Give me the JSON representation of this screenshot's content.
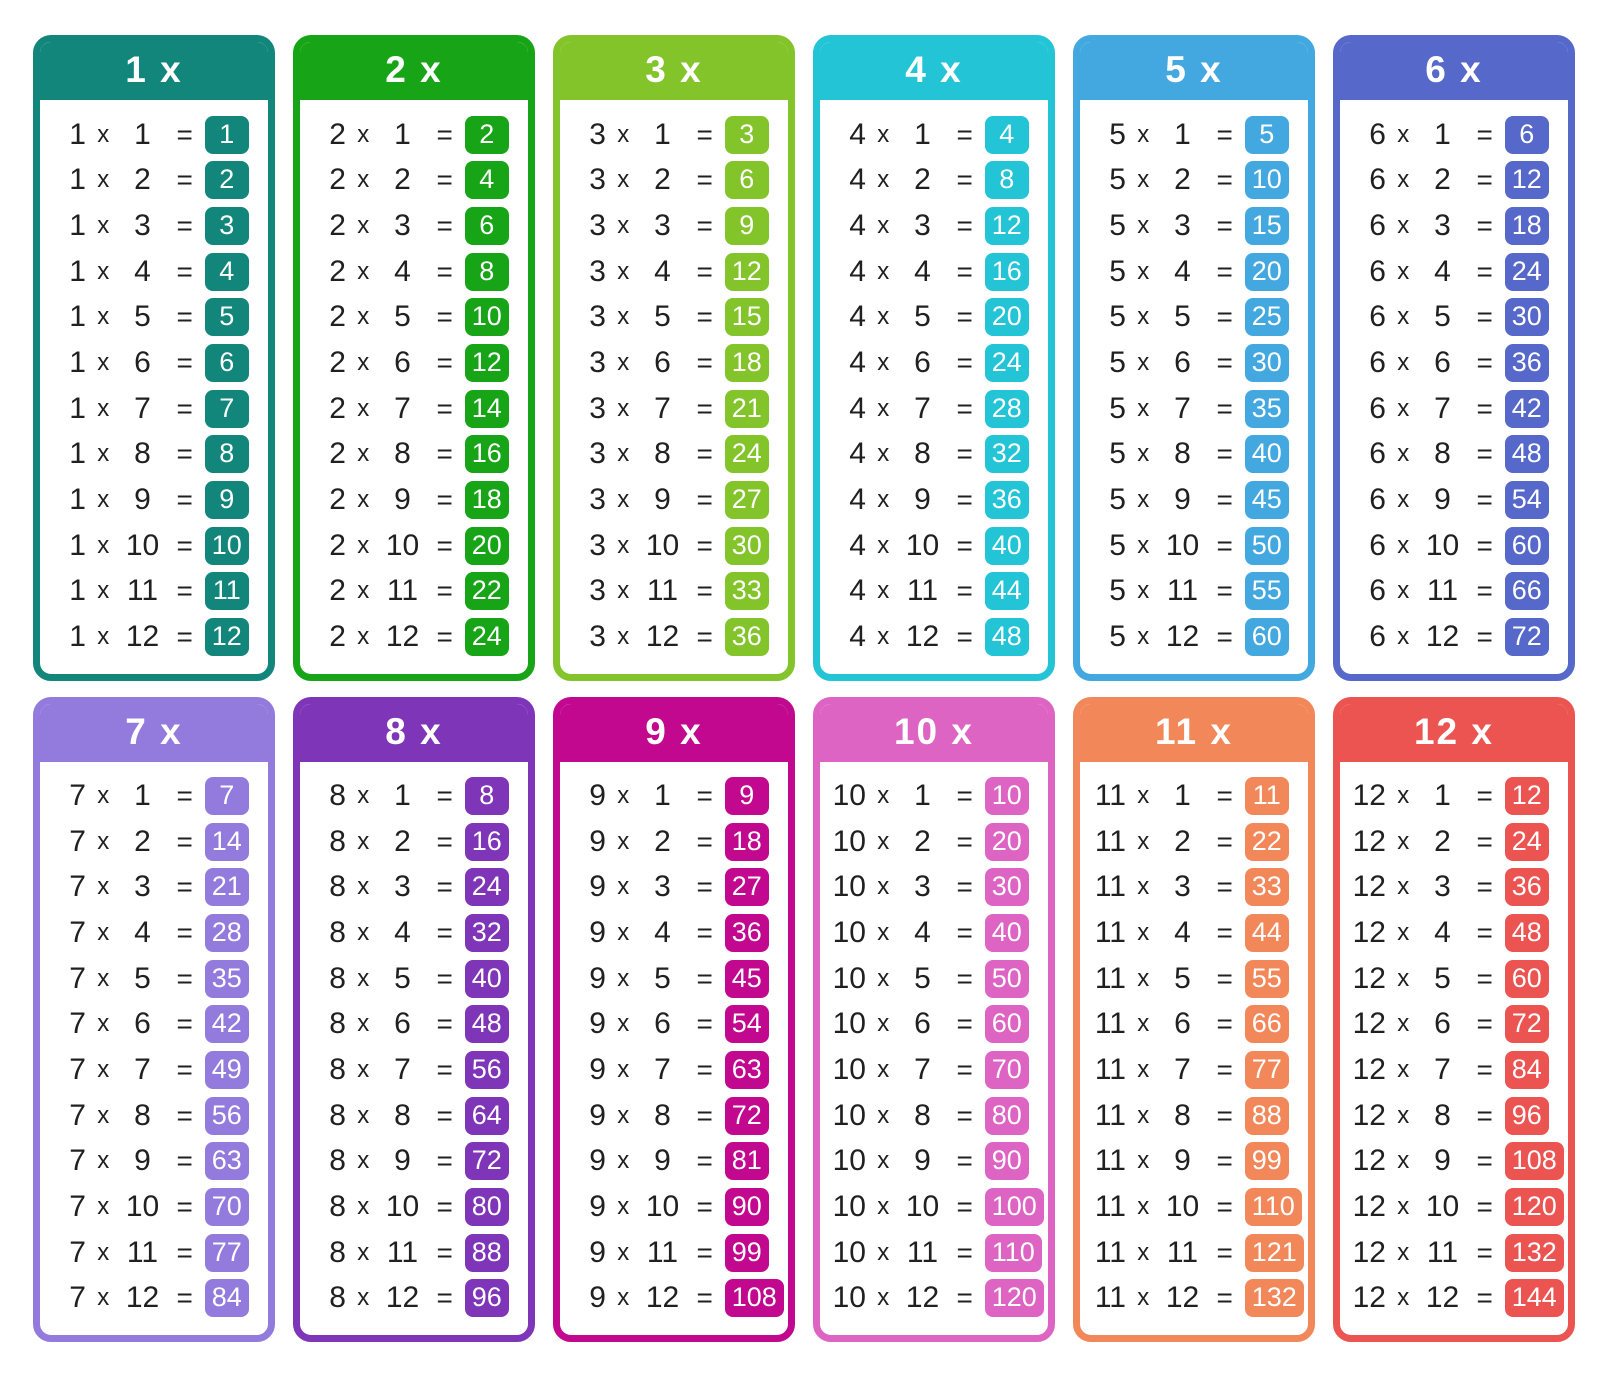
{
  "page": {
    "background": "#ffffff",
    "text_color": "#202020",
    "badge_text_color": "#ffffff"
  },
  "chart_data": {
    "type": "table",
    "description": "Multiplication tables poster, cards 1x through 12x",
    "layout": {
      "columns": 6,
      "rows": 2,
      "grid_on": false
    },
    "times_symbol": "x",
    "equals_symbol": "=",
    "factors": [
      1,
      2,
      3,
      4,
      5,
      6,
      7,
      8,
      9,
      10,
      11,
      12
    ],
    "tables": [
      {
        "label": "1 x",
        "multiplier": 1,
        "color": "#12867a",
        "products": [
          1,
          2,
          3,
          4,
          5,
          6,
          7,
          8,
          9,
          10,
          11,
          12
        ]
      },
      {
        "label": "2 x",
        "multiplier": 2,
        "color": "#17a517",
        "products": [
          2,
          4,
          6,
          8,
          10,
          12,
          14,
          16,
          18,
          20,
          22,
          24
        ]
      },
      {
        "label": "3 x",
        "multiplier": 3,
        "color": "#82c42a",
        "products": [
          3,
          6,
          9,
          12,
          15,
          18,
          21,
          24,
          27,
          30,
          33,
          36
        ]
      },
      {
        "label": "4 x",
        "multiplier": 4,
        "color": "#22c4d6",
        "products": [
          4,
          8,
          12,
          16,
          20,
          24,
          28,
          32,
          36,
          40,
          44,
          48
        ]
      },
      {
        "label": "5 x",
        "multiplier": 5,
        "color": "#44a8e0",
        "products": [
          5,
          10,
          15,
          20,
          25,
          30,
          35,
          40,
          45,
          50,
          55,
          60
        ]
      },
      {
        "label": "6 x",
        "multiplier": 6,
        "color": "#5668c9",
        "products": [
          6,
          12,
          18,
          24,
          30,
          36,
          42,
          48,
          54,
          60,
          66,
          72
        ]
      },
      {
        "label": "7 x",
        "multiplier": 7,
        "color": "#937add",
        "products": [
          7,
          14,
          21,
          28,
          35,
          42,
          49,
          56,
          63,
          70,
          77,
          84
        ]
      },
      {
        "label": "8 x",
        "multiplier": 8,
        "color": "#7f35b8",
        "products": [
          8,
          16,
          24,
          32,
          40,
          48,
          56,
          64,
          72,
          80,
          88,
          96
        ]
      },
      {
        "label": "9 x",
        "multiplier": 9,
        "color": "#c1088e",
        "products": [
          9,
          18,
          27,
          36,
          45,
          54,
          63,
          72,
          81,
          90,
          99,
          108
        ]
      },
      {
        "label": "10 x",
        "multiplier": 10,
        "color": "#de64c4",
        "products": [
          10,
          20,
          30,
          40,
          50,
          60,
          70,
          80,
          90,
          100,
          110,
          120
        ]
      },
      {
        "label": "11 x",
        "multiplier": 11,
        "color": "#f2885a",
        "products": [
          11,
          22,
          33,
          44,
          55,
          66,
          77,
          88,
          99,
          110,
          121,
          132
        ]
      },
      {
        "label": "12 x",
        "multiplier": 12,
        "color": "#eb5451",
        "products": [
          12,
          24,
          36,
          48,
          60,
          72,
          84,
          96,
          108,
          120,
          132,
          144
        ]
      }
    ]
  }
}
